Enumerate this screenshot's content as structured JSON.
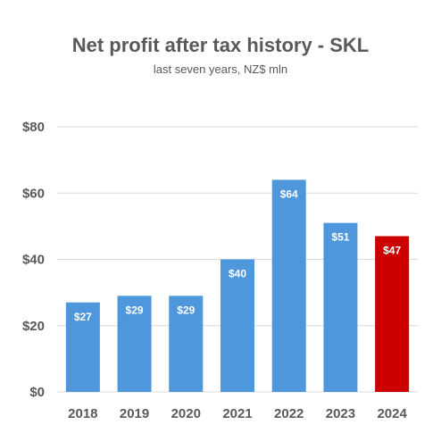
{
  "chart_data": {
    "type": "bar",
    "title": "Net profit after tax history - SKL",
    "subtitle": "last seven years, NZ$ mln",
    "xlabel": "",
    "ylabel": "",
    "categories": [
      "2018",
      "2019",
      "2020",
      "2021",
      "2022",
      "2023",
      "2024"
    ],
    "values": [
      27,
      29,
      29,
      40,
      64,
      51,
      47
    ],
    "data_labels": [
      "$27",
      "$29",
      "$29",
      "$40",
      "$64",
      "$51",
      "$47"
    ],
    "ylim": [
      0,
      80
    ],
    "y_ticks": [
      0,
      20,
      40,
      60,
      80
    ],
    "y_tick_labels": [
      "$0",
      "$20",
      "$40",
      "$60",
      "$80"
    ],
    "grid": true,
    "legend": "none",
    "colors": {
      "bar": "#4f97dd",
      "highlight_bar": "#cc0000",
      "highlight_category": "2024",
      "grid": "#d9d9d9",
      "text": "#595959"
    }
  }
}
